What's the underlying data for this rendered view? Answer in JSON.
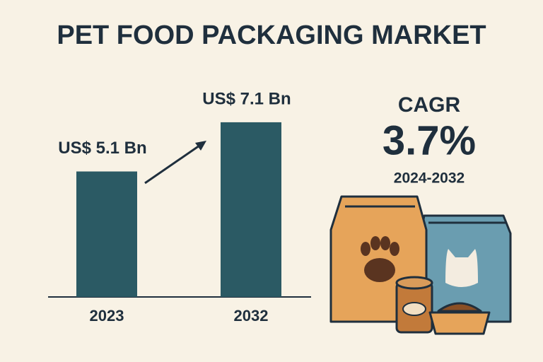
{
  "chart_data": {
    "type": "bar",
    "title": "PET FOOD PACKAGING MARKET",
    "categories": [
      "2023",
      "2032"
    ],
    "values": [
      5.1,
      7.1
    ],
    "value_labels": [
      "US$ 5.1 Bn",
      "US$ 7.1 Bn"
    ],
    "color": "#2b5a64",
    "cagr_label": "CAGR",
    "cagr": "3.7%",
    "cagr_period": "2024-2032"
  }
}
